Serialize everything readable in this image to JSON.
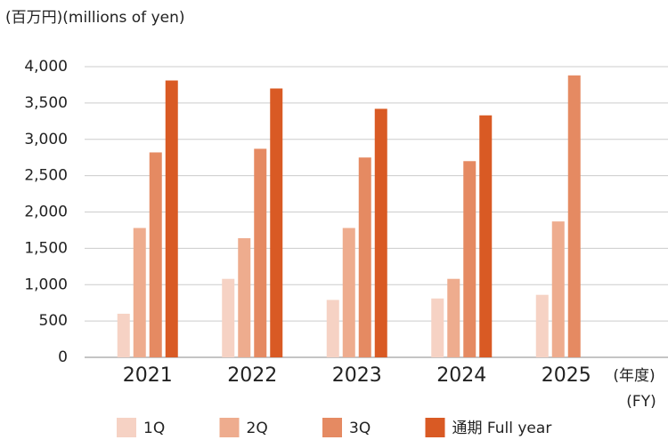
{
  "chart_data": {
    "type": "bar",
    "y_label": "(百万円)(millions of yen)",
    "x_label": "(年度)",
    "x_label_en": "(FY)",
    "categories": [
      "2021",
      "2022",
      "2023",
      "2024",
      "2025"
    ],
    "series": [
      {
        "name": "1Q",
        "color": "#f6d2c4",
        "values": [
          600,
          1080,
          790,
          810,
          860
        ]
      },
      {
        "name": "2Q",
        "color": "#eeac8e",
        "values": [
          1780,
          1640,
          1780,
          1080,
          1870
        ]
      },
      {
        "name": "3Q",
        "color": "#e58a62",
        "values": [
          2820,
          2870,
          2750,
          2700,
          3880
        ]
      },
      {
        "name": "通期 Full year",
        "color": "#d95a24",
        "values": [
          3810,
          3700,
          3420,
          3330,
          null
        ]
      }
    ],
    "ylim": [
      0,
      4000
    ],
    "yticks": [
      0,
      500,
      {
        "value": 1000,
        "label": "1,000"
      },
      {
        "value": 1500,
        "label": "1,500"
      },
      {
        "value": 2000,
        "label": "2,000"
      },
      {
        "value": 2500,
        "label": "2,500"
      },
      {
        "value": 3000,
        "label": "3,000"
      },
      {
        "value": 3500,
        "label": "3,500"
      },
      {
        "value": 4000,
        "label": "4,000"
      }
    ],
    "grid": true
  }
}
